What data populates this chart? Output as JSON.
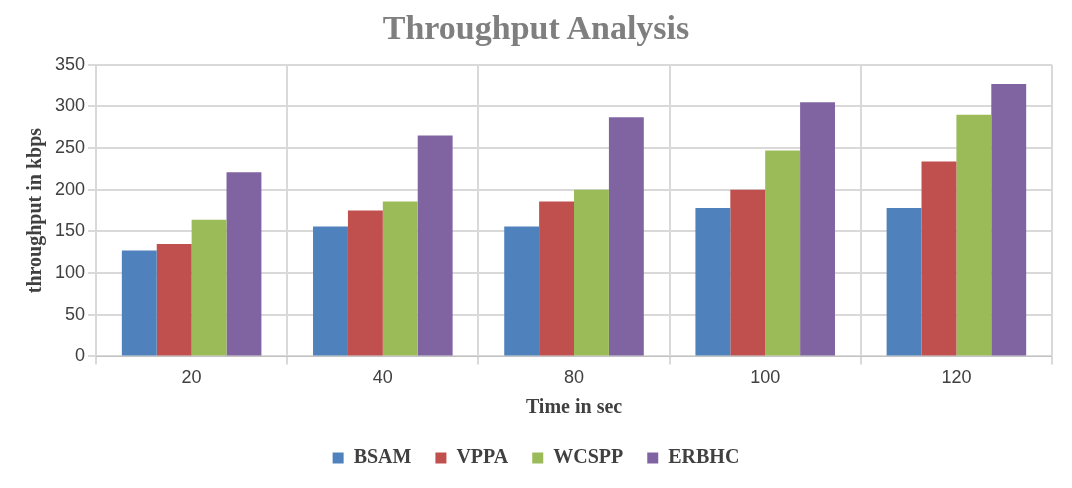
{
  "chart_data": {
    "type": "bar",
    "title": "Throughput Analysis",
    "xlabel": "Time in sec",
    "ylabel": "throughput in kbps",
    "categories": [
      "20",
      "40",
      "80",
      "100",
      "120"
    ],
    "series": [
      {
        "name": "BSAM",
        "color": "#4f81bd",
        "values": [
          127,
          156,
          156,
          178,
          178
        ]
      },
      {
        "name": "VPPA",
        "color": "#c0504d",
        "values": [
          135,
          175,
          186,
          200,
          234
        ]
      },
      {
        "name": "WCSPP",
        "color": "#9bbb59",
        "values": [
          164,
          186,
          200,
          247,
          290
        ]
      },
      {
        "name": "ERBHC",
        "color": "#8064a2",
        "values": [
          221,
          265,
          287,
          305,
          327
        ]
      }
    ],
    "ylim": [
      0,
      350
    ],
    "yticks": [
      0,
      50,
      100,
      150,
      200,
      250,
      300,
      350
    ],
    "grid": true,
    "legend": "bottom"
  }
}
